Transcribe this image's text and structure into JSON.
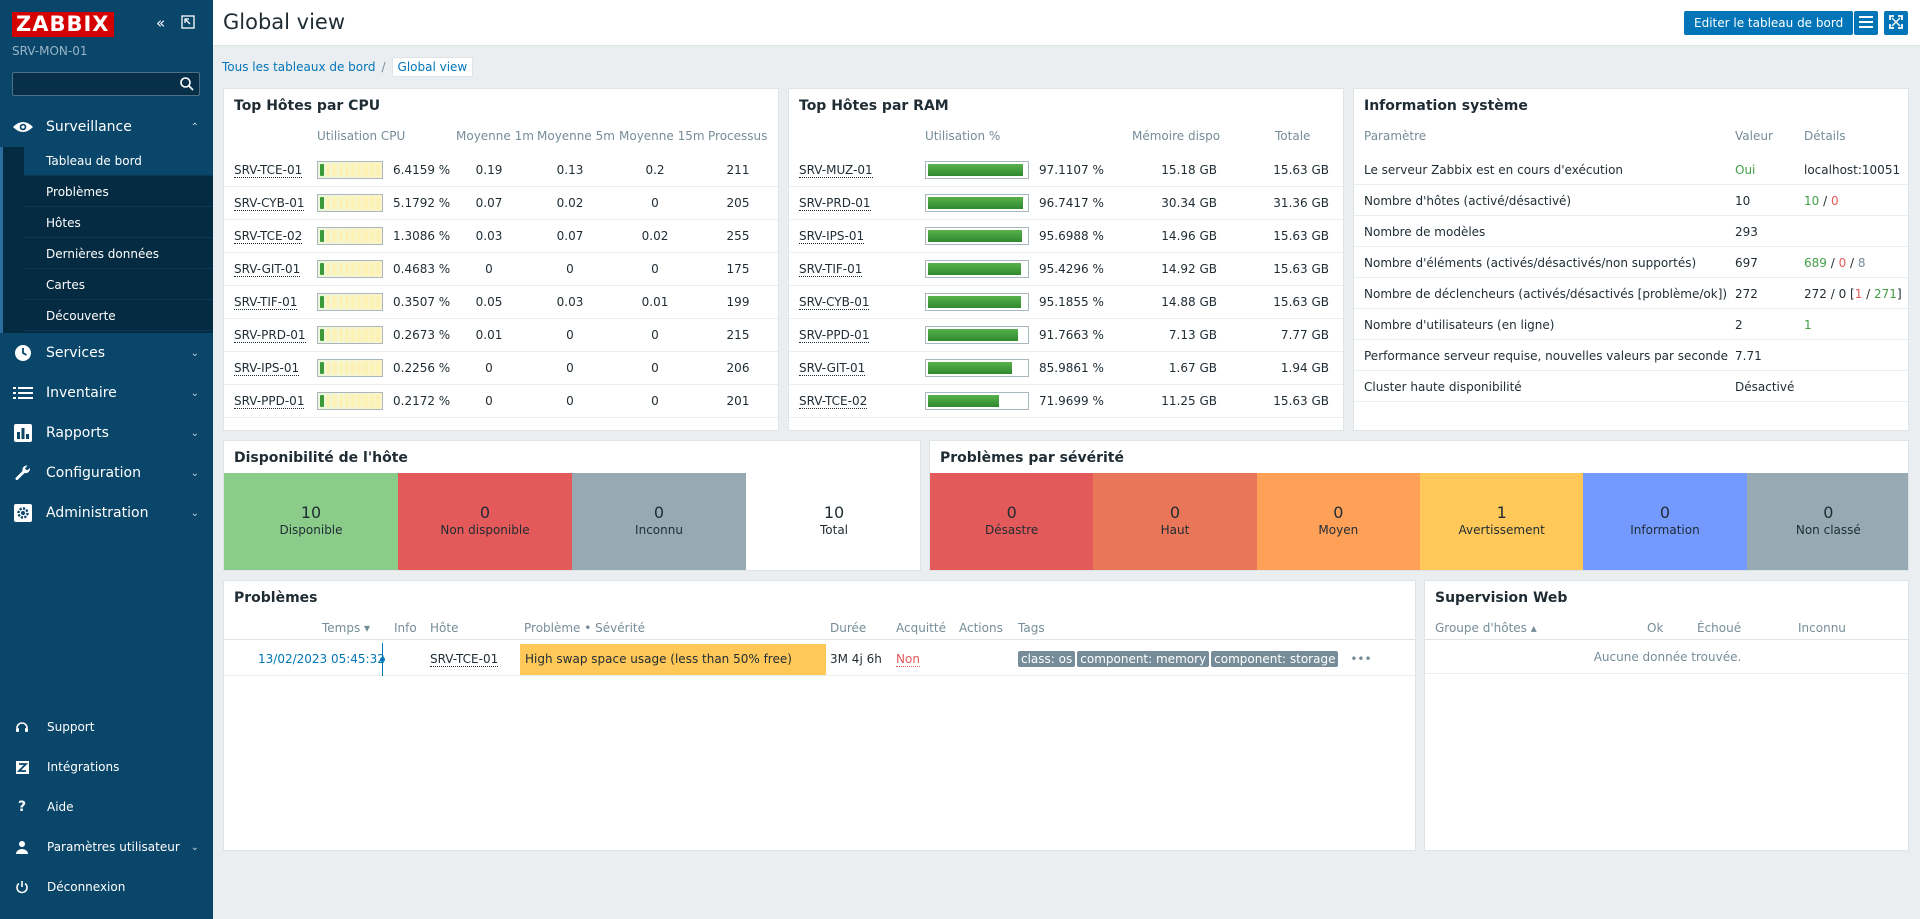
{
  "sidebar": {
    "logo": "ZABBIX",
    "server_name": "SRV-MON-01",
    "search_value": "",
    "sections": [
      {
        "label": "Surveillance",
        "icon": "eye-icon",
        "expanded": true
      },
      {
        "label": "Services",
        "icon": "clock-icon"
      },
      {
        "label": "Inventaire",
        "icon": "list-icon"
      },
      {
        "label": "Rapports",
        "icon": "bar-chart-icon"
      },
      {
        "label": "Configuration",
        "icon": "wrench-icon"
      },
      {
        "label": "Administration",
        "icon": "gear-icon"
      }
    ],
    "subitems": [
      "Tableau de bord",
      "Problèmes",
      "Hôtes",
      "Dernières données",
      "Cartes",
      "Découverte"
    ],
    "footer": [
      {
        "label": "Support",
        "icon": "headset-icon"
      },
      {
        "label": "Intégrations",
        "icon": "zabbix-z-icon"
      },
      {
        "label": "Aide",
        "icon": "question-icon"
      },
      {
        "label": "Paramètres utilisateur",
        "icon": "user-icon"
      },
      {
        "label": "Déconnexion",
        "icon": "power-icon"
      }
    ]
  },
  "header": {
    "title": "Global view",
    "edit_label": "Editer le tableau de bord"
  },
  "breadcrumb": {
    "all": "Tous les tableaux de bord",
    "current": "Global view"
  },
  "cpu": {
    "title": "Top Hôtes par CPU",
    "headers": [
      "Utilisation CPU",
      "Moyenne 1m",
      "Moyenne 5m",
      "Moyenne 15m",
      "Processus"
    ],
    "rows": [
      {
        "host": "SRV-TCE-01",
        "level": 1,
        "pct": "6.4159 %",
        "m1": "0.19",
        "m5": "0.13",
        "m15": "0.2",
        "proc": "211"
      },
      {
        "host": "SRV-CYB-01",
        "level": 1,
        "pct": "5.1792 %",
        "m1": "0.07",
        "m5": "0.02",
        "m15": "0",
        "proc": "205"
      },
      {
        "host": "SRV-TCE-02",
        "level": 1,
        "pct": "1.3086 %",
        "m1": "0.03",
        "m5": "0.07",
        "m15": "0.02",
        "proc": "255"
      },
      {
        "host": "SRV-GIT-01",
        "level": 1,
        "pct": "0.4683 %",
        "m1": "0",
        "m5": "0",
        "m15": "0",
        "proc": "175"
      },
      {
        "host": "SRV-TIF-01",
        "level": 1,
        "pct": "0.3507 %",
        "m1": "0.05",
        "m5": "0.03",
        "m15": "0.01",
        "proc": "199"
      },
      {
        "host": "SRV-PRD-01",
        "level": 1,
        "pct": "0.2673 %",
        "m1": "0.01",
        "m5": "0",
        "m15": "0",
        "proc": "215"
      },
      {
        "host": "SRV-IPS-01",
        "level": 1,
        "pct": "0.2256 %",
        "m1": "0",
        "m5": "0",
        "m15": "0",
        "proc": "206"
      },
      {
        "host": "SRV-PPD-01",
        "level": 1,
        "pct": "0.2172 %",
        "m1": "0",
        "m5": "0",
        "m15": "0",
        "proc": "201"
      }
    ]
  },
  "ram": {
    "title": "Top Hôtes par RAM",
    "headers": [
      "Utilisation %",
      "Mémoire dispo",
      "Totale"
    ],
    "rows": [
      {
        "host": "SRV-MUZ-01",
        "fill": 0.971,
        "pct": "97.1107 %",
        "avail": "15.18 GB",
        "total": "15.63 GB"
      },
      {
        "host": "SRV-PRD-01",
        "fill": 0.967,
        "pct": "96.7417 %",
        "avail": "30.34 GB",
        "total": "31.36 GB"
      },
      {
        "host": "SRV-IPS-01",
        "fill": 0.957,
        "pct": "95.6988 %",
        "avail": "14.96 GB",
        "total": "15.63 GB"
      },
      {
        "host": "SRV-TIF-01",
        "fill": 0.954,
        "pct": "95.4296 %",
        "avail": "14.92 GB",
        "total": "15.63 GB"
      },
      {
        "host": "SRV-CYB-01",
        "fill": 0.952,
        "pct": "95.1855 %",
        "avail": "14.88 GB",
        "total": "15.63 GB"
      },
      {
        "host": "SRV-PPD-01",
        "fill": 0.918,
        "pct": "91.7663 %",
        "avail": "7.13 GB",
        "total": "7.77 GB"
      },
      {
        "host": "SRV-GIT-01",
        "fill": 0.86,
        "pct": "85.9861 %",
        "avail": "1.67 GB",
        "total": "1.94 GB"
      },
      {
        "host": "SRV-TCE-02",
        "fill": 0.72,
        "pct": "71.9699 %",
        "avail": "11.25 GB",
        "total": "15.63 GB"
      }
    ]
  },
  "sysinfo": {
    "title": "Information système",
    "headers": [
      "Paramètre",
      "Valeur",
      "Détails"
    ],
    "rows": [
      {
        "param": "Le serveur Zabbix est en cours d'exécution",
        "value": "Oui",
        "details": "localhost:10051"
      },
      {
        "param": "Nombre d'hôtes (activé/désactivé)",
        "value": "10",
        "d1": "10",
        "d2": "0"
      },
      {
        "param": "Nombre de modèles",
        "value": "293"
      },
      {
        "param": "Nombre d'éléments (activés/désactivés/non supportés)",
        "value": "697",
        "d1": "689",
        "d2": "0",
        "d3": "8"
      },
      {
        "param": "Nombre de déclencheurs (activés/désactivés [problème/ok])",
        "value": "272",
        "d1": "272 / 0 [",
        "d2": "1",
        "d3": "271",
        "d4": "]"
      },
      {
        "param": "Nombre d'utilisateurs (en ligne)",
        "value": "2",
        "d1": "1"
      },
      {
        "param": "Performance serveur requise, nouvelles valeurs par seconde",
        "value": "7.71"
      },
      {
        "param": "Cluster haute disponibilité",
        "value": "Désactivé"
      }
    ]
  },
  "availability": {
    "title": "Disponibilité de l'hôte",
    "cells": [
      {
        "count": "10",
        "label": "Disponible",
        "color": "#8ccc8a"
      },
      {
        "count": "0",
        "label": "Non disponible",
        "color": "#e45959"
      },
      {
        "count": "0",
        "label": "Inconnu",
        "color": "#97aab3"
      },
      {
        "count": "10",
        "label": "Total",
        "color": "#ffffff"
      }
    ]
  },
  "severity": {
    "title": "Problèmes par sévérité",
    "cells": [
      {
        "count": "0",
        "label": "Désastre",
        "color": "#e45959"
      },
      {
        "count": "0",
        "label": "Haut",
        "color": "#e97659"
      },
      {
        "count": "0",
        "label": "Moyen",
        "color": "#ffa059"
      },
      {
        "count": "1",
        "label": "Avertissement",
        "color": "#ffc859"
      },
      {
        "count": "0",
        "label": "Information",
        "color": "#7499ff"
      },
      {
        "count": "0",
        "label": "Non classé",
        "color": "#97aab3"
      }
    ]
  },
  "problems": {
    "title": "Problèmes",
    "headers": {
      "time": "Temps ▾",
      "info": "Info",
      "host": "Hôte",
      "problem": "Problème • Sévérité",
      "duration": "Durée",
      "ack": "Acquitté",
      "actions": "Actions",
      "tags": "Tags"
    },
    "row": {
      "time": "13/02/2023 05:45:32",
      "host": "SRV-TCE-01",
      "problem": "High swap space usage (less than 50% free)",
      "duration": "3M 4j 6h",
      "ack": "Non",
      "tags": [
        "class: os",
        "component: memory",
        "component: storage"
      ],
      "more": "•••"
    }
  },
  "web": {
    "title": "Supervision Web",
    "headers": [
      "Groupe d'hôtes ▴",
      "Ok",
      "Échoué",
      "Inconnu"
    ],
    "empty": "Aucune donnée trouvée."
  }
}
